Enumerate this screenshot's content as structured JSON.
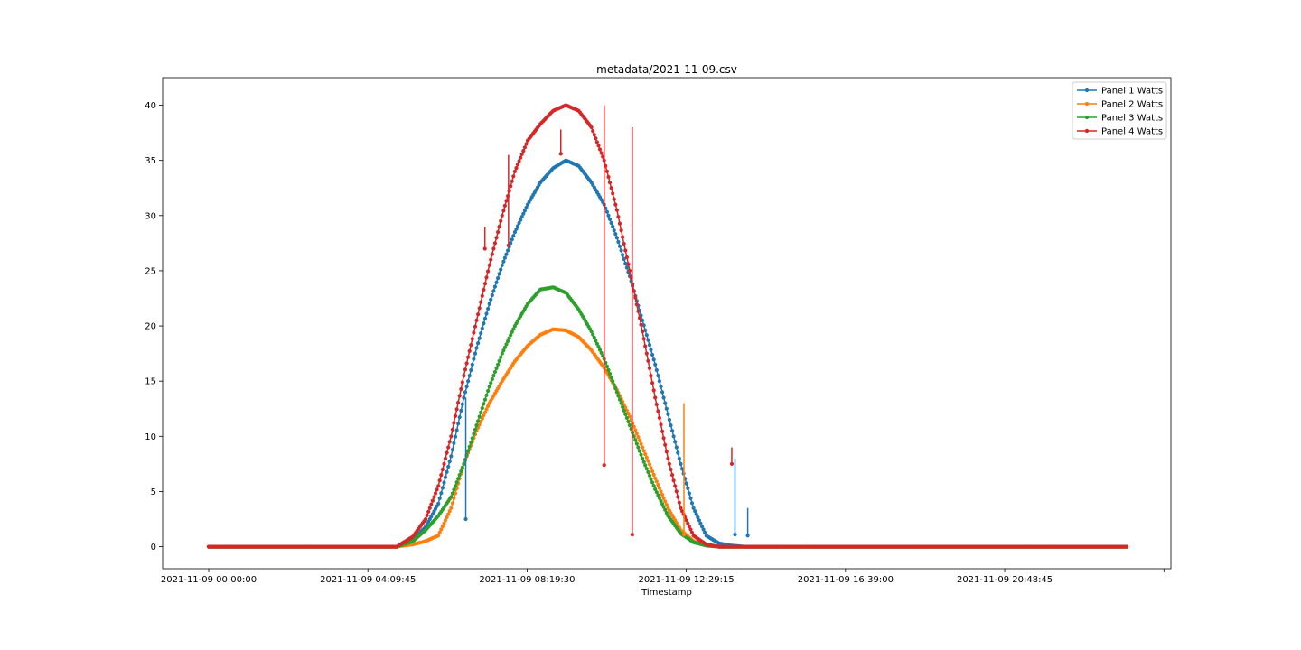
{
  "chart_data": {
    "type": "line",
    "title": "metadata/2021-11-09.csv",
    "xlabel": "Timestamp",
    "ylabel": "",
    "x_tick_labels": [
      "2021-11-09 00:00:00",
      "2021-11-09 04:09:45",
      "2021-11-09 08:19:30",
      "2021-11-09 12:29:15",
      "2021-11-09 16:39:00",
      "2021-11-09 20:48:45"
    ],
    "y_ticks": [
      0,
      5,
      10,
      15,
      20,
      25,
      30,
      35,
      40
    ],
    "ylim": [
      -2,
      42.5
    ],
    "xlim": [
      "2021-11-09 00:00:00",
      "2021-11-10 00:00:00"
    ],
    "grid": false,
    "legend_position": "top-right",
    "x": [
      "2021-11-09 00:00",
      "2021-11-09 04:55",
      "2021-11-09 05:00",
      "2021-11-09 05:20",
      "2021-11-09 05:40",
      "2021-11-09 06:00",
      "2021-11-09 06:20",
      "2021-11-09 06:40",
      "2021-11-09 07:00",
      "2021-11-09 07:20",
      "2021-11-09 07:40",
      "2021-11-09 08:00",
      "2021-11-09 08:20",
      "2021-11-09 08:40",
      "2021-11-09 09:00",
      "2021-11-09 09:20",
      "2021-11-09 09:40",
      "2021-11-09 10:00",
      "2021-11-09 10:20",
      "2021-11-09 10:40",
      "2021-11-09 11:00",
      "2021-11-09 11:20",
      "2021-11-09 11:40",
      "2021-11-09 12:00",
      "2021-11-09 12:20",
      "2021-11-09 12:40",
      "2021-11-09 13:00",
      "2021-11-09 13:20",
      "2021-11-09 13:40",
      "2021-11-09 14:00",
      "2021-11-09 14:20",
      "2021-11-09 14:40",
      "2021-11-09 14:55",
      "2021-11-09 15:00",
      "2021-11-09 23:59"
    ],
    "series": [
      {
        "name": "Panel 1 Watts",
        "color": "#1f77b4",
        "values": [
          0,
          0,
          0.1,
          0.6,
          1.8,
          3.9,
          8.2,
          13.5,
          18.0,
          22.0,
          25.5,
          28.5,
          31.0,
          33.0,
          34.3,
          35.0,
          34.5,
          33.0,
          31.0,
          28.0,
          24.5,
          20.5,
          16.5,
          12.0,
          7.5,
          3.5,
          1.0,
          0.3,
          0.1,
          0,
          0,
          0,
          0,
          0,
          0
        ]
      },
      {
        "name": "Panel 2 Watts",
        "color": "#ff7f0e",
        "values": [
          0,
          0,
          0.05,
          0.2,
          0.5,
          1.0,
          3.5,
          7.5,
          10.5,
          13.0,
          15.0,
          16.8,
          18.2,
          19.2,
          19.7,
          19.6,
          19.0,
          17.8,
          16.2,
          14.2,
          11.8,
          9.0,
          6.2,
          3.5,
          1.5,
          0.5,
          0.1,
          0,
          0,
          0,
          0,
          0,
          0,
          0,
          0
        ]
      },
      {
        "name": "Panel 3 Watts",
        "color": "#2ca02c",
        "values": [
          0,
          0,
          0.1,
          0.5,
          1.5,
          2.8,
          4.5,
          7.5,
          11.0,
          14.5,
          17.5,
          20.0,
          22.0,
          23.3,
          23.5,
          23.0,
          21.5,
          19.5,
          17.0,
          14.0,
          11.0,
          8.0,
          5.2,
          2.8,
          1.2,
          0.4,
          0.1,
          0,
          0,
          0,
          0,
          0,
          0,
          0,
          0
        ]
      },
      {
        "name": "Panel 4 Watts",
        "color": "#d62728",
        "values": [
          0,
          0,
          0.2,
          0.9,
          2.5,
          5.5,
          10.0,
          15.5,
          20.5,
          25.5,
          30.0,
          34.0,
          36.8,
          38.3,
          39.5,
          40.0,
          39.5,
          38.0,
          35.0,
          30.5,
          25.0,
          19.5,
          13.5,
          8.0,
          3.5,
          1.0,
          0.2,
          0,
          0,
          0,
          0,
          0,
          0,
          0,
          0
        ]
      }
    ],
    "spikes": [
      {
        "series": "Panel 4 Watts",
        "x": "2021-11-09 10:20",
        "from": 40.0,
        "to": 7.4
      },
      {
        "series": "Panel 4 Watts",
        "x": "2021-11-09 11:04",
        "from": 38.0,
        "to": 1.1
      },
      {
        "series": "Panel 2 Watts",
        "x": "2021-11-09 12:25",
        "from": 13.0,
        "to": 1.1
      },
      {
        "series": "Panel 4 Watts",
        "x": "2021-11-09 07:50",
        "from": 35.5,
        "to": 27.3
      },
      {
        "series": "Panel 4 Watts",
        "x": "2021-11-09 07:13",
        "from": 29.0,
        "to": 27.0
      },
      {
        "series": "Panel 4 Watts",
        "x": "2021-11-09 09:12",
        "from": 37.8,
        "to": 35.6
      },
      {
        "series": "Panel 1 Watts",
        "x": "2021-11-09 06:43",
        "from": 13.5,
        "to": 2.5
      },
      {
        "series": "Panel 1 Watts",
        "x": "2021-11-09 13:45",
        "from": 8.0,
        "to": 1.1
      },
      {
        "series": "Panel 1 Watts",
        "x": "2021-11-09 14:05",
        "from": 3.5,
        "to": 1.0
      },
      {
        "series": "Panel 4 Watts",
        "x": "2021-11-09 13:40",
        "from": 9.0,
        "to": 7.5
      }
    ]
  }
}
